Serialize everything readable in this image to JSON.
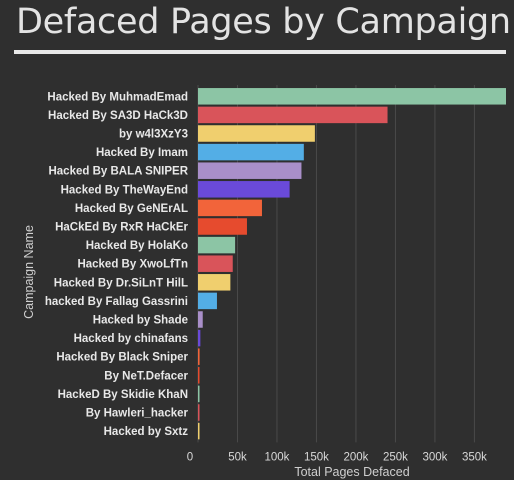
{
  "title": "Defaced Pages by Campaign",
  "chart_data": {
    "type": "bar",
    "orientation": "horizontal",
    "title": "",
    "xlabel": "Total Pages Defaced",
    "ylabel": "Campaign Name",
    "xlim": [
      0,
      390000
    ],
    "x_ticks": [
      0,
      50000,
      100000,
      150000,
      200000,
      250000,
      300000,
      350000
    ],
    "x_tick_labels": [
      "0",
      "50k",
      "100k",
      "150k",
      "200k",
      "250k",
      "300k",
      "350k"
    ],
    "grid": true,
    "legend": "none",
    "categories": [
      "Hacked By MuhmadEmad",
      "Hacked By SA3D HaCk3D",
      "by w4l3XzY3",
      "Hacked By Imam",
      "Hacked By BALA SNIPER",
      "Hacked By TheWayEnd",
      "Hacked By GeNErAL",
      "HaCkEd By RxR HaCkEr",
      "Hacked By HolaKo",
      "Hacked By XwoLfTn",
      "Hacked By Dr.SiLnT HilL",
      "hacked By Fallag Gassrini",
      "Hacked by Shade",
      "Hacked by chinafans",
      "Hacked By Black Sniper",
      "By NeT.Defacer",
      "HackeD By Skidie KhaN",
      "By Hawleri_hacker",
      "Hacked by Sxtz"
    ],
    "values": [
      390000,
      240000,
      148000,
      134000,
      131000,
      116000,
      81000,
      62000,
      47000,
      44000,
      41000,
      24000,
      6000,
      3000,
      2000,
      1800,
      1500,
      1200,
      1000
    ],
    "colors": [
      "#8cc5a5",
      "#d9545a",
      "#f0cf6e",
      "#53aee6",
      "#a98fc9",
      "#6a4ad9",
      "#f2643a",
      "#e64b2e",
      "#8cc5a5",
      "#d9545a",
      "#f0cf6e",
      "#53aee6",
      "#a98fc9",
      "#6a4ad9",
      "#f2643a",
      "#e64b2e",
      "#8cc5a5",
      "#d9545a",
      "#f0cf6e"
    ]
  }
}
